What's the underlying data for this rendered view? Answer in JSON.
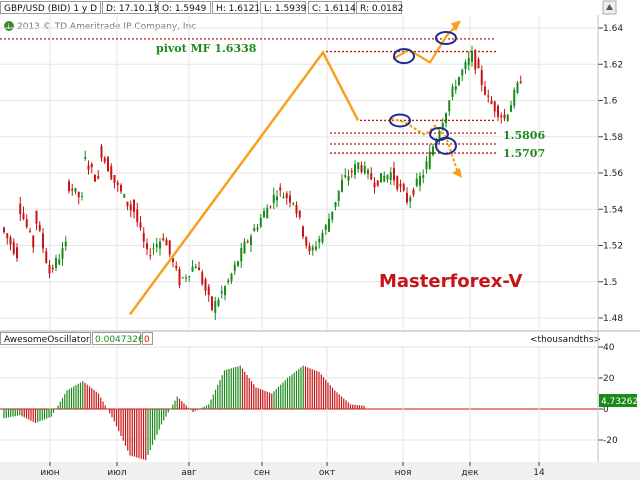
{
  "header": {
    "symbol": "GBP/USD (BID) 1 y D",
    "date": "D: 17.10.13",
    "open": "O: 1.5949",
    "high": "H: 1.6121",
    "low": "L: 1.5939",
    "close": "C: 1.6114",
    "range": "R: 0.0182",
    "copyright": "2013 © TD Ameritrade IP Company, Inc",
    "info_icon": "info-icon",
    "up_icon": "up-arrow-icon"
  },
  "annotations": {
    "pivot": "pivot MF 1.6338",
    "level1": "1.5806",
    "level2": "1.5707",
    "watermark": "Masterforex-V"
  },
  "oscillator": {
    "name": "AwesomeOscillator",
    "value": "0.0047326",
    "zero_box": "0",
    "units": "<thousandths>",
    "current": "4.73262"
  },
  "colors": {
    "bull": "#1a8a1a",
    "bear": "#c81414",
    "trend": "#f5a11c",
    "pivot_line": "#c81414",
    "circle": "#1e2c8c",
    "grid": "#e6e6e6"
  },
  "chart_data": [
    {
      "type": "candlestick",
      "ylim": [
        1.47,
        1.645
      ],
      "yticks": [
        "1.64",
        "1.62",
        "1.6",
        "1.58",
        "1.56",
        "1.54",
        "1.52",
        "1.5",
        "1.48"
      ],
      "xticks": [
        "июн",
        "июл",
        "авг",
        "сен",
        "окт",
        "ноя",
        "дек",
        "14"
      ],
      "segments": [
        [
          1.53,
          1.515
        ],
        [
          1.545,
          1.52
        ],
        [
          1.54,
          1.505
        ],
        [
          1.505,
          1.52
        ],
        [
          1.555,
          1.545
        ],
        [
          1.57,
          1.555
        ],
        [
          1.575,
          1.555
        ],
        [
          1.555,
          1.54
        ],
        [
          1.545,
          1.515
        ],
        [
          1.515,
          1.525
        ],
        [
          1.525,
          1.5
        ],
        [
          1.5,
          1.51
        ],
        [
          1.51,
          1.485
        ],
        [
          1.485,
          1.5
        ],
        [
          1.5,
          1.52
        ],
        [
          1.52,
          1.535
        ],
        [
          1.535,
          1.55
        ],
        [
          1.55,
          1.545
        ],
        [
          1.545,
          1.515
        ],
        [
          1.515,
          1.53
        ],
        [
          1.53,
          1.555
        ],
        [
          1.555,
          1.565
        ],
        [
          1.565,
          1.555
        ],
        [
          1.555,
          1.56
        ],
        [
          1.56,
          1.545
        ],
        [
          1.545,
          1.56
        ],
        [
          1.56,
          1.585
        ],
        [
          1.585,
          1.61
        ],
        [
          1.61,
          1.625
        ],
        [
          1.625,
          1.6
        ],
        [
          1.6,
          1.59
        ],
        [
          1.59,
          1.612
        ]
      ],
      "annotation_levels": [
        1.634,
        1.627,
        1.589,
        1.582,
        1.576,
        1.571
      ],
      "trend_path_values": [
        1.482,
        1.6265,
        1.589
      ],
      "projection_up": [
        1.623,
        1.628,
        1.621,
        1.636,
        1.642
      ],
      "projection_down": [
        1.59,
        1.588,
        1.581,
        1.586,
        1.58,
        1.56
      ]
    },
    {
      "type": "bar",
      "title": "AwesomeOscillator",
      "ylim": [
        -30,
        40
      ],
      "yticks": [
        "40",
        "20",
        "0",
        "-20"
      ],
      "segments": [
        [
          -6,
          -4
        ],
        [
          -4,
          -9
        ],
        [
          -9,
          -5
        ],
        [
          -5,
          12
        ],
        [
          12,
          18
        ],
        [
          18,
          10
        ],
        [
          10,
          -8
        ],
        [
          -8,
          -30
        ],
        [
          -30,
          -33
        ],
        [
          -33,
          -10
        ],
        [
          -10,
          8
        ],
        [
          8,
          -2
        ],
        [
          -2,
          3
        ],
        [
          3,
          25
        ],
        [
          25,
          28
        ],
        [
          28,
          14
        ],
        [
          14,
          10
        ],
        [
          10,
          20
        ],
        [
          20,
          28
        ],
        [
          28,
          24
        ],
        [
          24,
          12
        ],
        [
          12,
          3
        ],
        [
          3,
          2
        ]
      ]
    }
  ]
}
